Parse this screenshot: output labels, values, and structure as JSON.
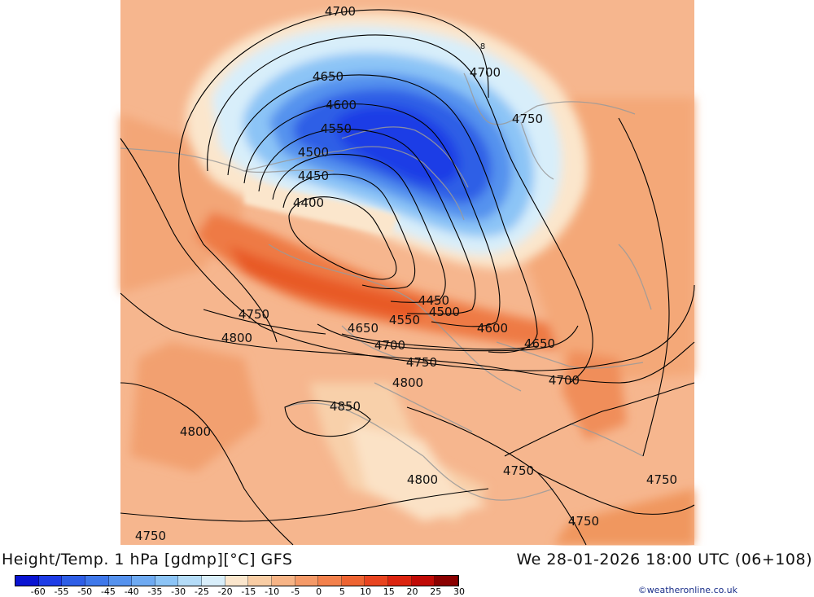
{
  "header": {
    "title": "Height/Temp. 1 hPa [gdmp][°C] GFS",
    "datetime": "We 28-01-2026 18:00 UTC (06+108)"
  },
  "colorbar": {
    "tick_labels": [
      "-60",
      "-55",
      "-50",
      "-45",
      "-40",
      "-35",
      "-30",
      "-25",
      "-20",
      "-15",
      "-10",
      "-5",
      "0",
      "5",
      "10",
      "15",
      "20",
      "25",
      "30"
    ],
    "colors": [
      "#0a14d2",
      "#1e3ce6",
      "#2e5ee6",
      "#3f78ea",
      "#5592ee",
      "#6eaaf2",
      "#8cc4f6",
      "#b4dcf8",
      "#d8eefa",
      "#fbe6cc",
      "#f9cda4",
      "#f7b486",
      "#f59a68",
      "#f3814c",
      "#ee6432",
      "#e84420",
      "#dc2410",
      "#c00a06",
      "#8a0000"
    ]
  },
  "map": {
    "contour_labels": [
      "4700",
      "4650",
      "4600",
      "4550",
      "4500",
      "4450",
      "4400",
      "4700",
      "4750",
      "4450",
      "4500",
      "4550",
      "4600",
      "4650",
      "4750",
      "4800",
      "4650",
      "4700",
      "4750",
      "4800",
      "4700",
      "4850",
      "4800",
      "4800",
      "4750",
      "4750",
      "4750",
      "4750"
    ],
    "marker": "8"
  },
  "credit": "©weatheronline.co.uk"
}
